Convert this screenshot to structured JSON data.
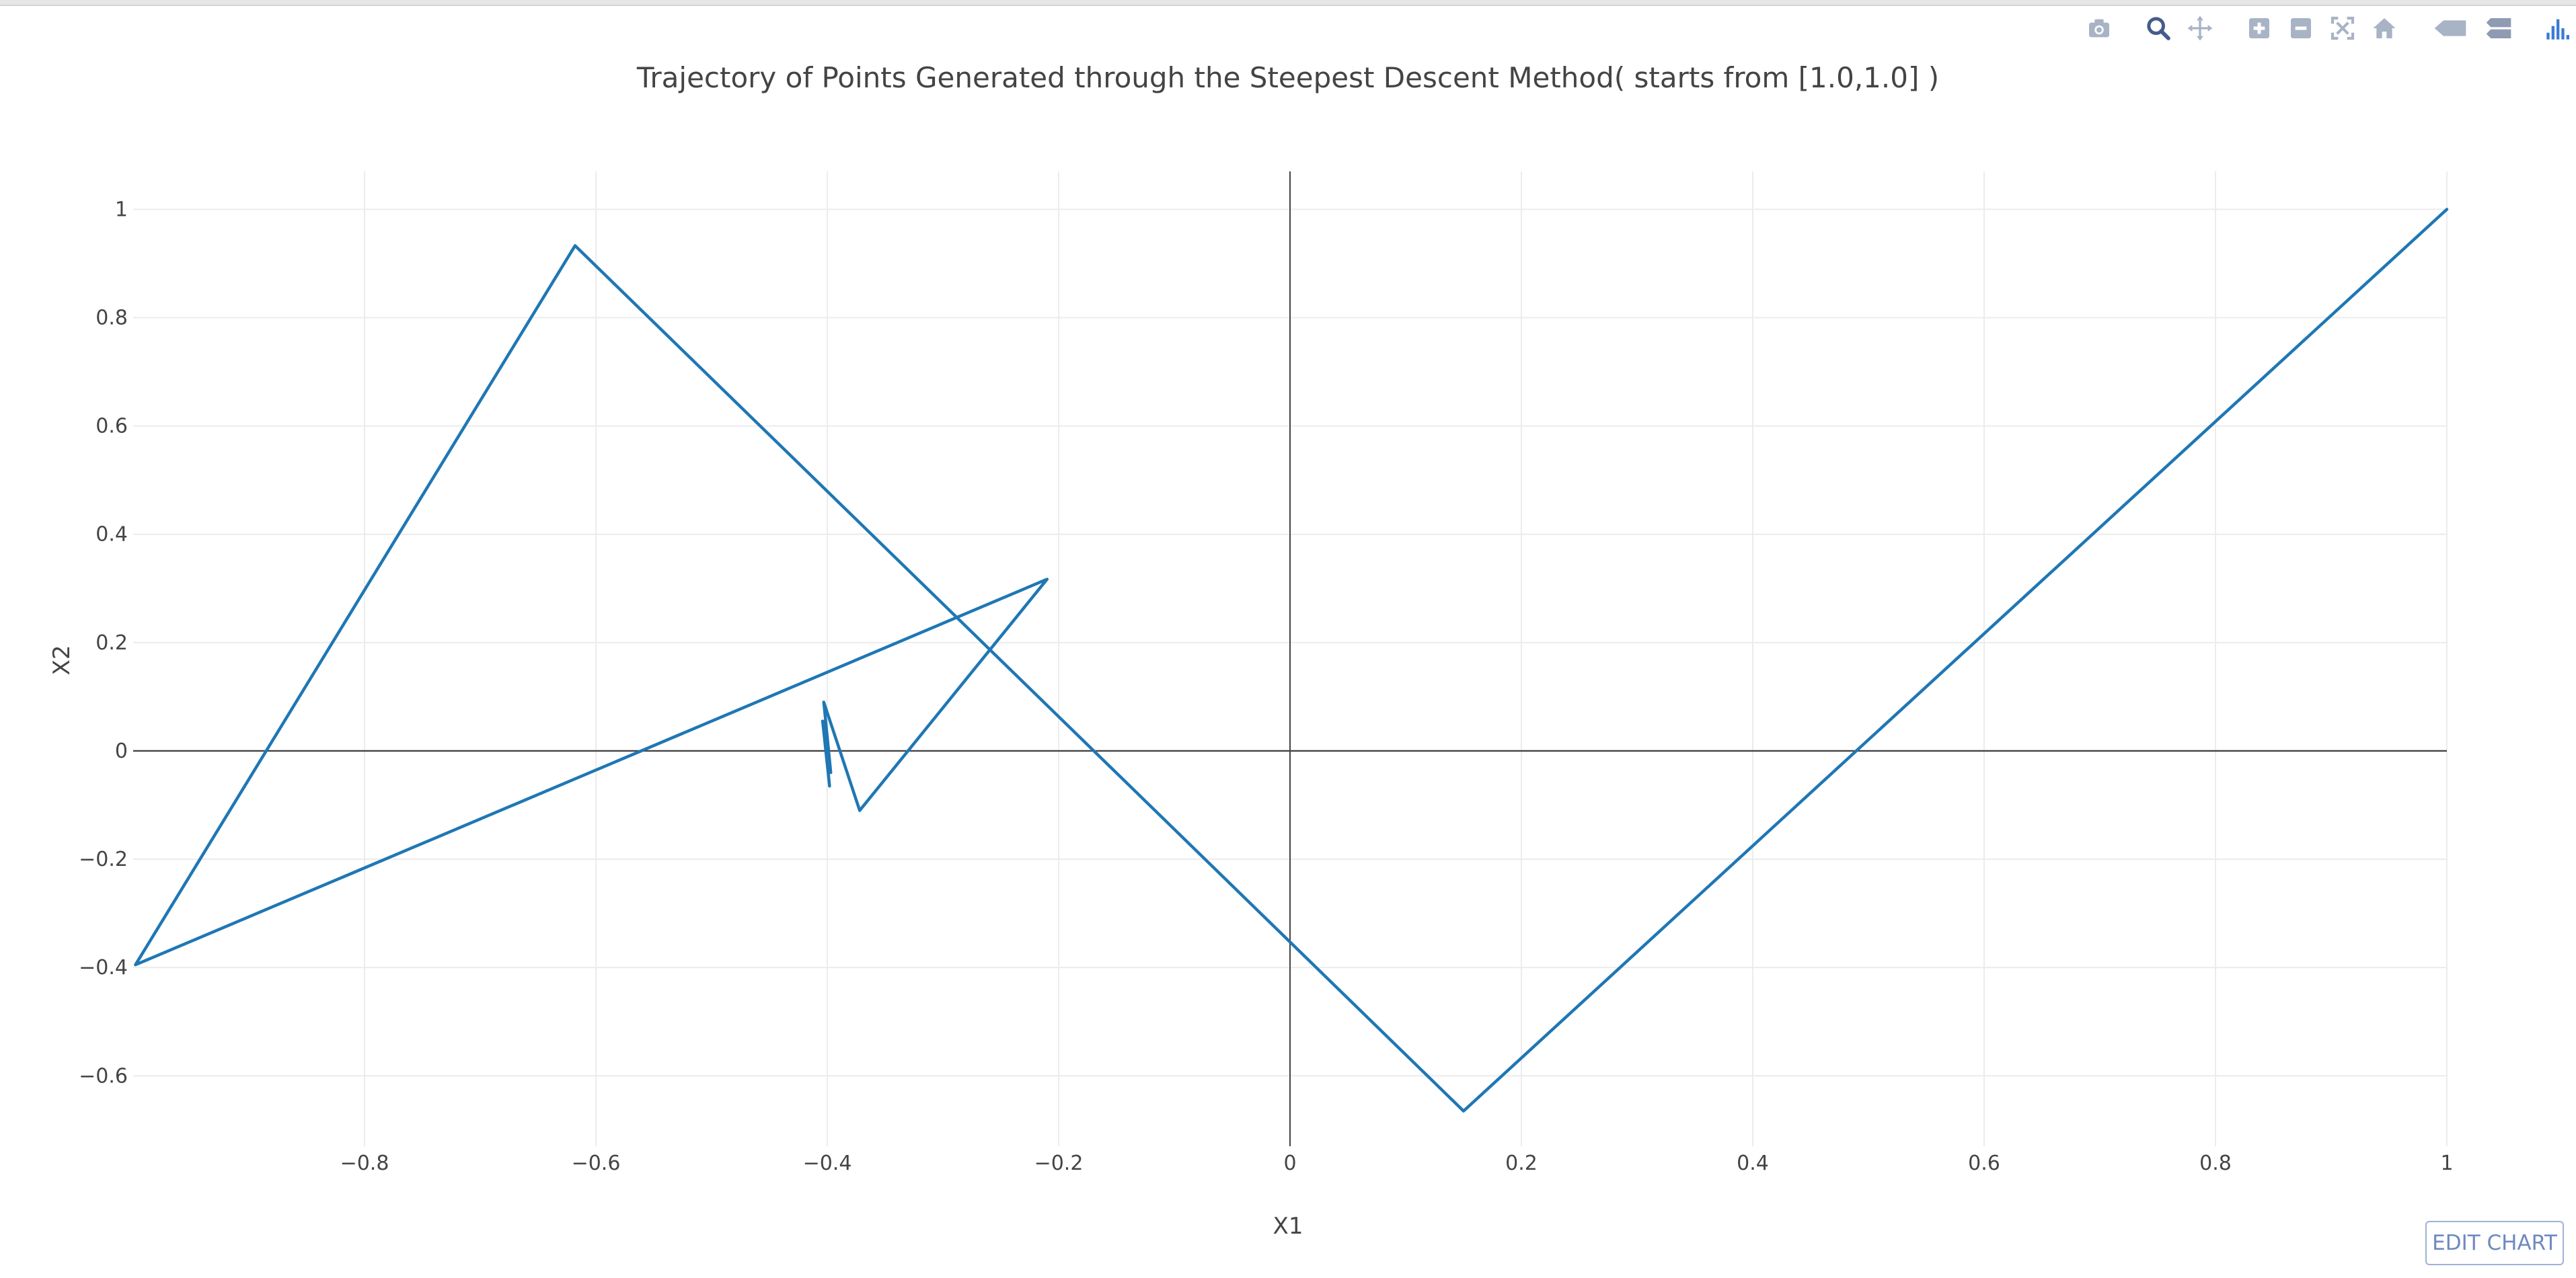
{
  "modebar": {
    "buttons": [
      {
        "name": "camera-icon"
      },
      {
        "name": "zoom-icon"
      },
      {
        "name": "pan-icon"
      },
      {
        "name": "zoom-in-icon"
      },
      {
        "name": "zoom-out-icon"
      },
      {
        "name": "autoscale-icon"
      },
      {
        "name": "home-icon"
      },
      {
        "name": "show-closest-icon"
      },
      {
        "name": "compare-hover-icon"
      },
      {
        "name": "plotly-logo-icon"
      }
    ]
  },
  "edit_chart_label": "EDIT CHART",
  "chart_data": {
    "type": "line",
    "title": "Trajectory of Points Generated through the Steepest Descent Method( starts from [1.0,1.0] )",
    "xlabel": "X1",
    "ylabel": "X2",
    "xlim": [
      -1.0,
      1.0
    ],
    "ylim": [
      -0.73,
      1.07
    ],
    "xticks": [
      -0.8,
      -0.6,
      -0.4,
      -0.2,
      0,
      0.2,
      0.4,
      0.6,
      0.8,
      1
    ],
    "xtick_labels": [
      "−0.8",
      "−0.6",
      "−0.4",
      "−0.2",
      "0",
      "0.2",
      "0.4",
      "0.6",
      "0.8",
      "1"
    ],
    "yticks": [
      1,
      0.8,
      0.6,
      0.4,
      0.2,
      0,
      -0.2,
      -0.4,
      -0.6
    ],
    "ytick_labels": [
      "1",
      "0.8",
      "0.6",
      "0.4",
      "0.2",
      "0",
      "−0.2",
      "−0.4",
      "−0.6"
    ],
    "grid": true,
    "zero_lines": true,
    "line_color": "#1f77b4",
    "series": [
      {
        "x": [
          1.0,
          0.15,
          -0.618,
          -0.998,
          -0.21,
          -0.372,
          -0.403,
          -0.397,
          -0.404,
          -0.398,
          -0.403,
          -0.399,
          -0.402,
          -0.4
        ],
        "y": [
          1.0,
          -0.665,
          0.933,
          -0.395,
          0.317,
          -0.11,
          0.09,
          -0.04,
          0.055,
          -0.065,
          0.045,
          -0.02,
          0.03,
          0.0
        ]
      }
    ]
  }
}
